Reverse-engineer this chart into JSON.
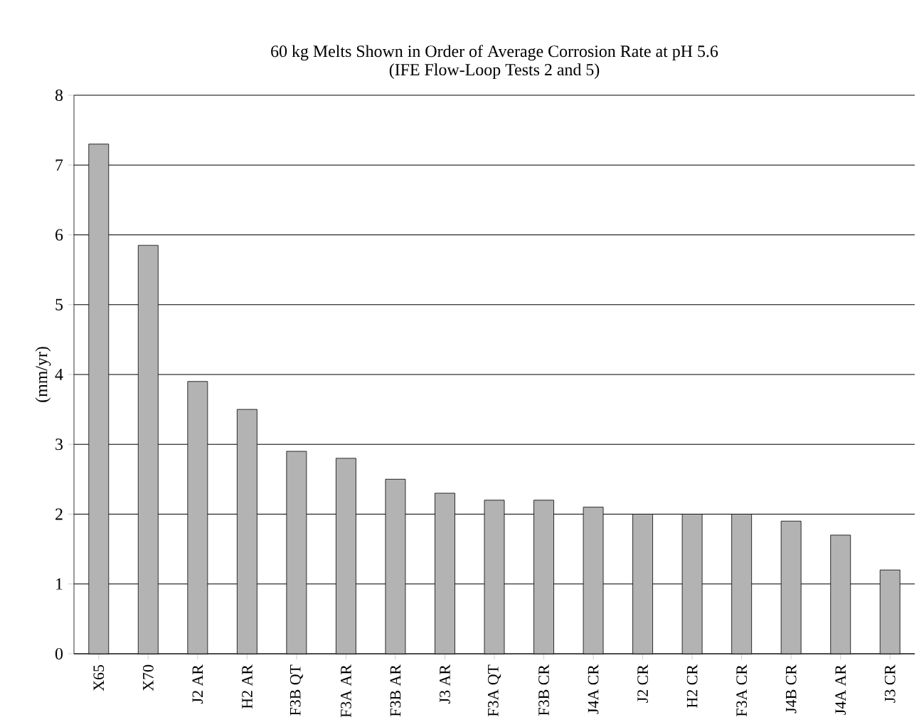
{
  "chart_data": {
    "type": "bar",
    "title": "60 kg Melts Shown in Order of Average Corrosion Rate at pH 5.6",
    "subtitle": "(IFE Flow-Loop Tests 2 and 5)",
    "ylabel": "(mm/yr)",
    "categories": [
      "X65",
      "X70",
      "J2 AR",
      "H2 AR",
      "F3B QT",
      "F3A AR",
      "F3B AR",
      "J3 AR",
      "F3A QT",
      "F3B CR",
      "J4A CR",
      "J2 CR",
      "H2 CR",
      "F3A CR",
      "J4B CR",
      "J4A AR",
      "J3 CR"
    ],
    "values": [
      7.3,
      5.85,
      3.9,
      3.5,
      2.9,
      2.8,
      2.5,
      2.3,
      2.2,
      2.2,
      2.1,
      2.0,
      2.0,
      2.0,
      1.9,
      1.7,
      1.2
    ],
    "color": "#b3b3b3",
    "ylim": [
      0,
      8
    ],
    "yticks": [
      0,
      1,
      2,
      3,
      4,
      5,
      6,
      7,
      8
    ],
    "grid": "y"
  }
}
